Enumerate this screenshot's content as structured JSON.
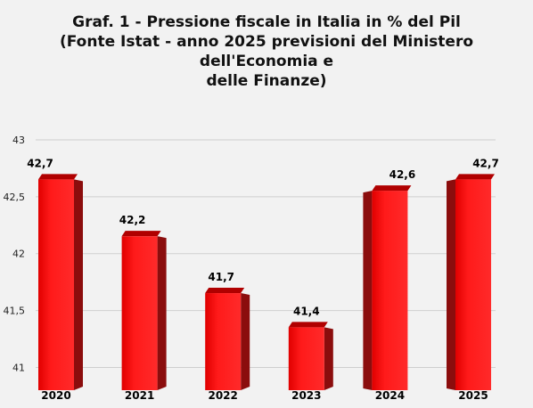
{
  "chart_data": {
    "type": "bar",
    "title_lines": [
      "Graf. 1 - Pressione fiscale in Italia in % del Pil",
      "(Fonte Istat - anno 2025 previsioni del Ministero dell'Economia e",
      "delle Finanze)"
    ],
    "categories": [
      "2020",
      "2021",
      "2022",
      "2023",
      "2024",
      "2025"
    ],
    "values": [
      42.7,
      42.2,
      41.7,
      41.4,
      42.6,
      42.7
    ],
    "value_labels": [
      "42,7",
      "42,2",
      "41,7",
      "41,4",
      "42,6",
      "42,7"
    ],
    "yticks": [
      41,
      41.5,
      42,
      42.5,
      43
    ],
    "ytick_labels": [
      "41",
      "41,5",
      "42",
      "42,5",
      "43"
    ],
    "ylim": [
      40.8,
      43
    ],
    "grid": true,
    "legend": "none",
    "bar_color": "#ff1a1a",
    "bar_side_color": "#8b0d0d",
    "bar_top_color": "#b00000",
    "grid_color": "#cfcfcf"
  }
}
